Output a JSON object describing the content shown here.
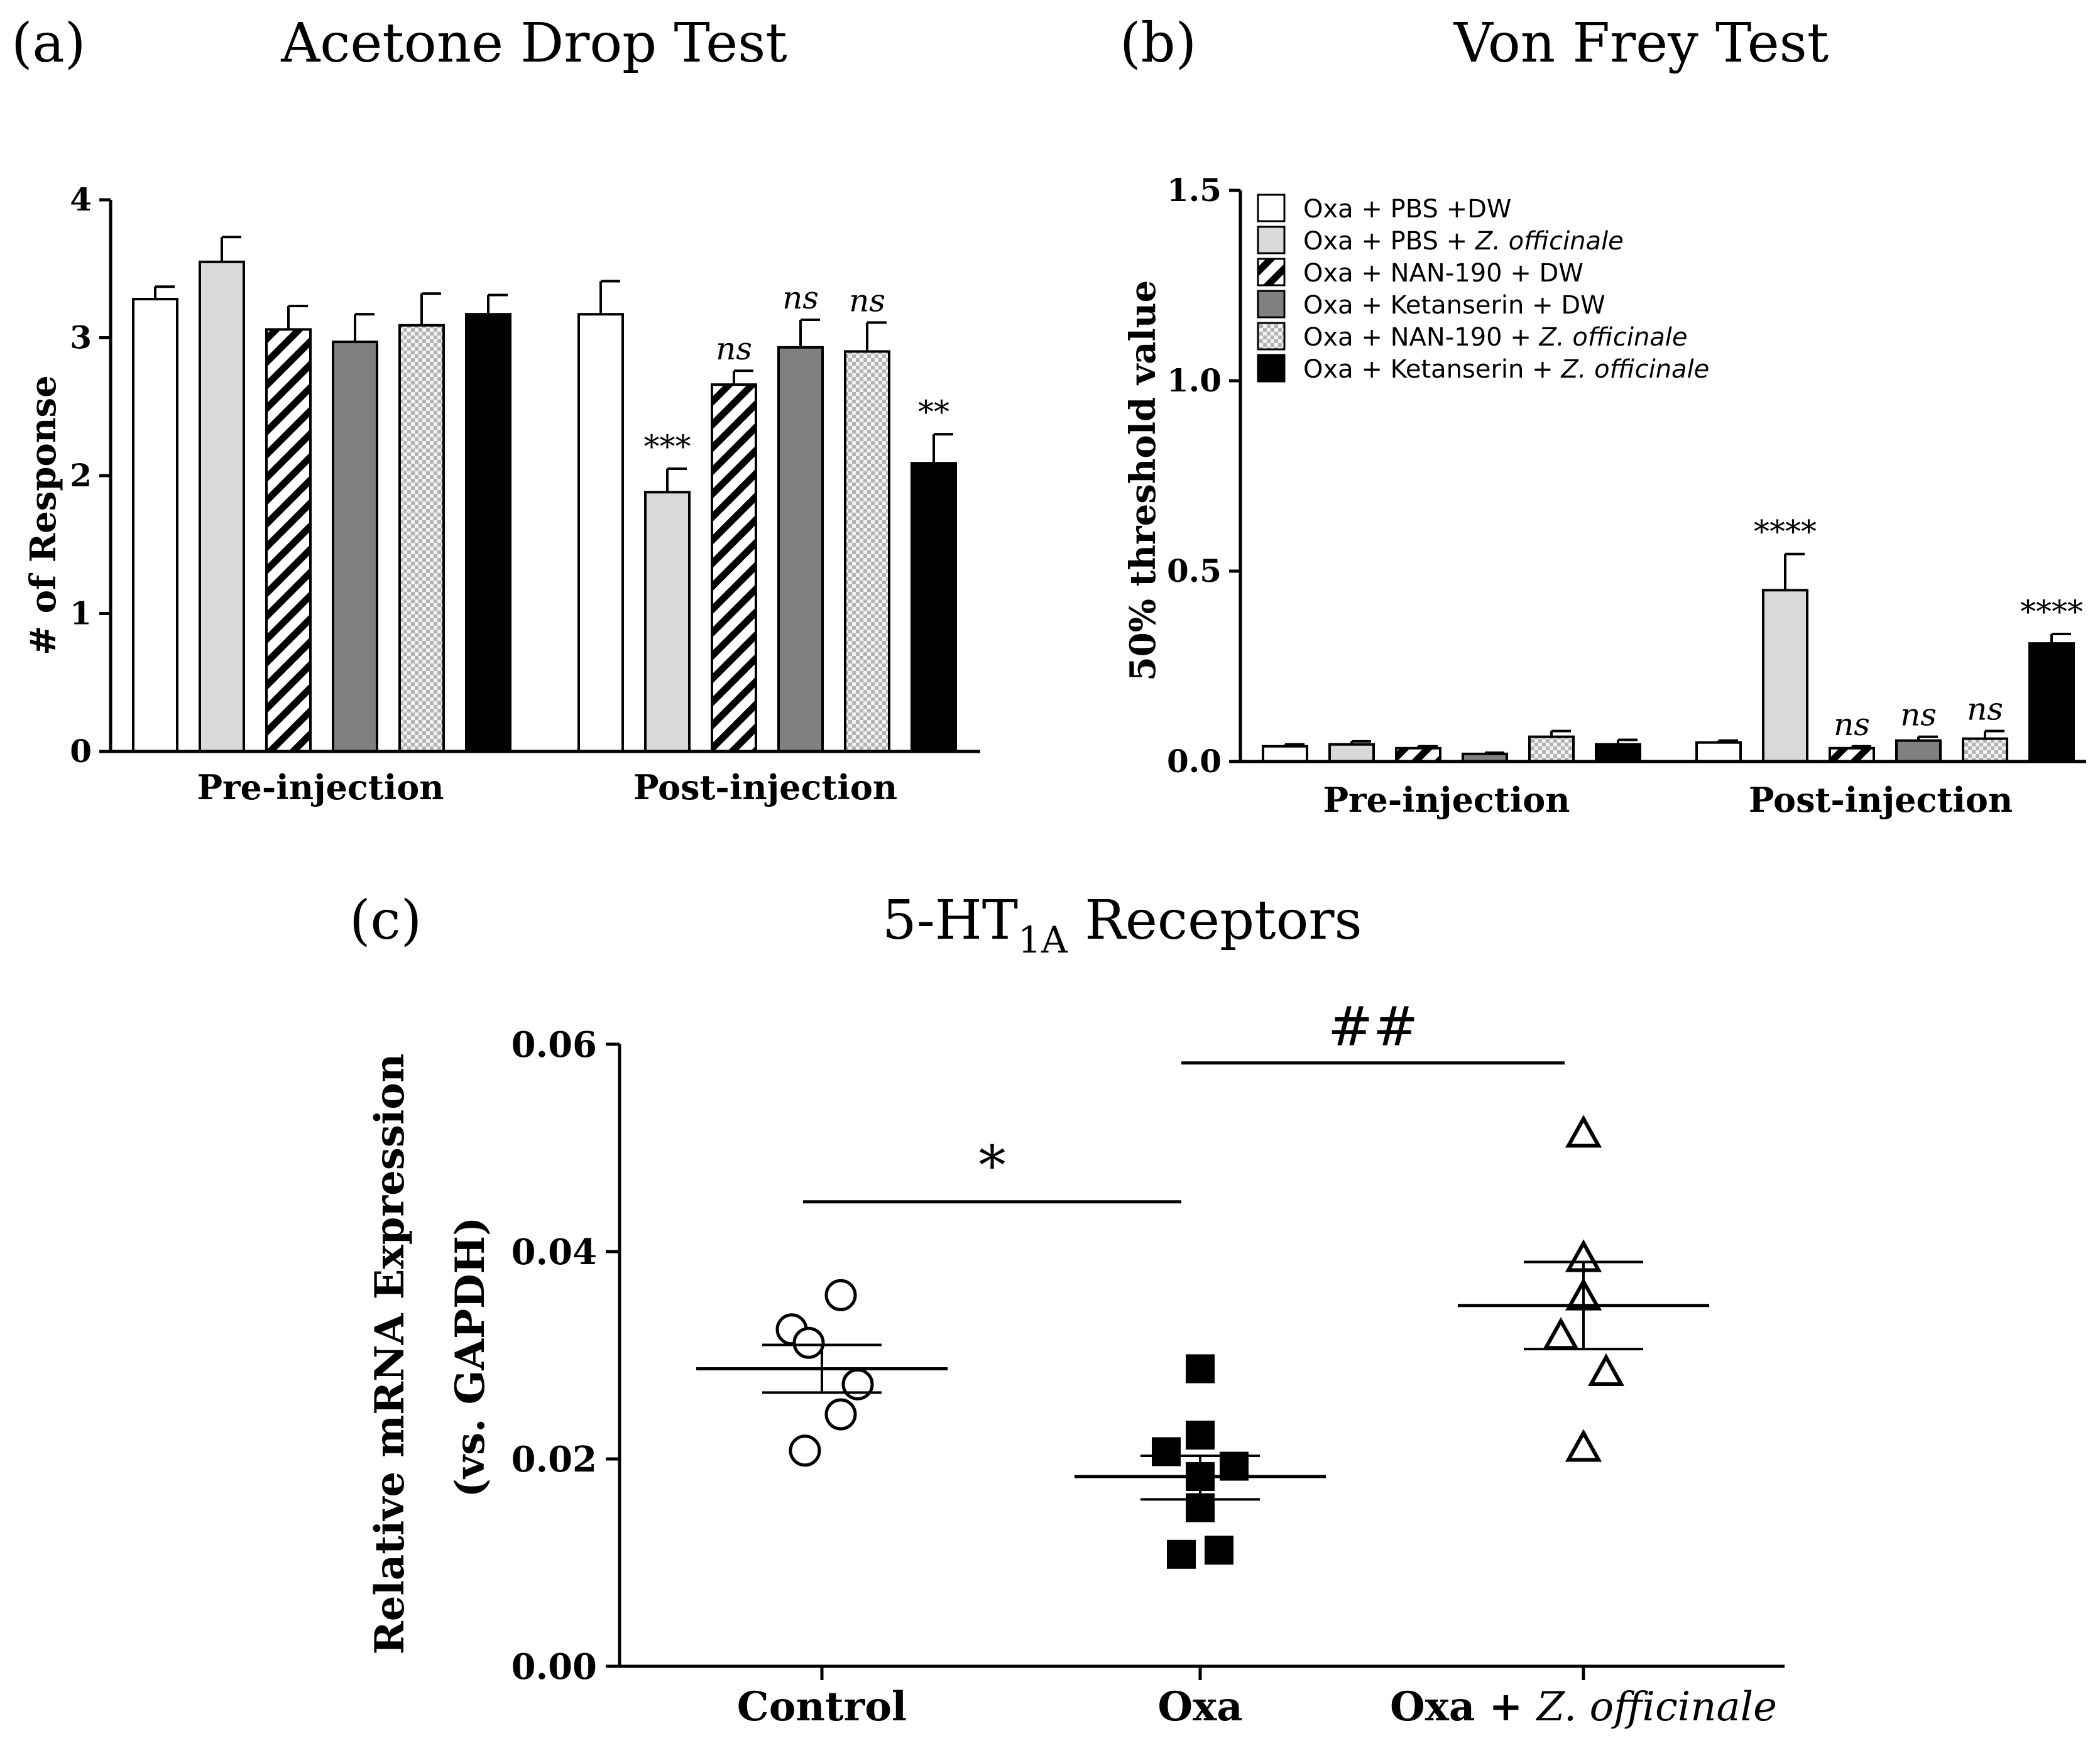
{
  "colors": {
    "white": "#ffffff",
    "light_gray": "#d9d9d9",
    "dark_gray": "#808080",
    "black": "#000000"
  },
  "chart_data": [
    {
      "panel": "(a)",
      "type": "bar",
      "title": "Acetone Drop Test",
      "xlabel": "",
      "ylabel": "# of Response",
      "ylim": [
        0,
        4
      ],
      "yticks": [
        "0",
        "1",
        "2",
        "3",
        "4"
      ],
      "categories": [
        "Pre-injection",
        "Post-injection"
      ],
      "series": [
        {
          "name": "Oxa + PBS +DW",
          "fill": "white",
          "values": [
            3.28,
            3.17
          ],
          "errors": [
            0.09,
            0.24
          ],
          "sig": [
            "",
            ""
          ]
        },
        {
          "name": "Oxa + PBS + Z. officinale",
          "fill": "light",
          "values": [
            3.55,
            1.88
          ],
          "errors": [
            0.18,
            0.17
          ],
          "sig": [
            "",
            "***"
          ]
        },
        {
          "name": "Oxa + NAN-190 + DW",
          "fill": "hatch",
          "values": [
            3.06,
            2.66
          ],
          "errors": [
            0.17,
            0.1
          ],
          "sig": [
            "",
            "ns"
          ]
        },
        {
          "name": "Oxa + Ketanserin + DW",
          "fill": "dark",
          "values": [
            2.97,
            2.93
          ],
          "errors": [
            0.2,
            0.2
          ],
          "sig": [
            "",
            "ns"
          ]
        },
        {
          "name": "Oxa + NAN-190 + Z. officinale",
          "fill": "check",
          "values": [
            3.09,
            2.9
          ],
          "errors": [
            0.23,
            0.21
          ],
          "sig": [
            "",
            "ns"
          ]
        },
        {
          "name": "Oxa + Ketanserin + Z. officinale",
          "fill": "black",
          "values": [
            3.17,
            2.09
          ],
          "errors": [
            0.14,
            0.21
          ],
          "sig": [
            "",
            "**"
          ]
        }
      ]
    },
    {
      "panel": "(b)",
      "type": "bar",
      "title": "Von Frey Test",
      "xlabel": "",
      "ylabel": "50% threshold value",
      "ylim": [
        0,
        1.5
      ],
      "yticks": [
        "0.0",
        "0.5",
        "1.0",
        "1.5"
      ],
      "categories": [
        "Pre-injection",
        "Post-injection"
      ],
      "legend_position": "top-left",
      "series": [
        {
          "name": "Oxa + PBS +DW",
          "legend_main": "Oxa + PBS +DW",
          "legend_it": "",
          "fill": "white",
          "values": [
            0.04,
            0.05
          ],
          "errors": [
            0.005,
            0.005
          ],
          "sig": [
            "",
            ""
          ]
        },
        {
          "name": "Oxa + PBS + Z. officinale",
          "legend_main": "Oxa + PBS + ",
          "legend_it": "Z. officinale",
          "fill": "light",
          "values": [
            0.045,
            0.45
          ],
          "errors": [
            0.008,
            0.095
          ],
          "sig": [
            "",
            "****"
          ]
        },
        {
          "name": "Oxa + NAN-190 + DW",
          "legend_main": "Oxa + NAN-190 + DW",
          "legend_it": "",
          "fill": "hatch",
          "values": [
            0.035,
            0.035
          ],
          "errors": [
            0.005,
            0.005
          ],
          "sig": [
            "",
            "ns"
          ]
        },
        {
          "name": "Oxa + Ketanserin + DW",
          "legend_main": "Oxa + Ketanserin + DW",
          "legend_it": "",
          "fill": "dark",
          "values": [
            0.02,
            0.055
          ],
          "errors": [
            0.003,
            0.01
          ],
          "sig": [
            "",
            "ns"
          ]
        },
        {
          "name": "Oxa + NAN-190 + Z. officinale",
          "legend_main": "Oxa + NAN-190 + ",
          "legend_it": "Z. officinale",
          "fill": "check",
          "values": [
            0.065,
            0.06
          ],
          "errors": [
            0.015,
            0.02
          ],
          "sig": [
            "",
            "ns"
          ]
        },
        {
          "name": "Oxa + Ketanserin + Z. officinale",
          "legend_main": "Oxa + Ketanserin + ",
          "legend_it": "Z. officinale",
          "fill": "black",
          "values": [
            0.045,
            0.31
          ],
          "errors": [
            0.012,
            0.025
          ],
          "sig": [
            "",
            "****"
          ]
        }
      ]
    },
    {
      "panel": "(c)",
      "type": "scatter",
      "title_main": "5-HT",
      "title_sub": "1A",
      "title_rest": " Receptors",
      "xlabel": "",
      "ylabel_line1": "Relative mRNA Expression",
      "ylabel_line2": "(vs. GAPDH)",
      "ylim": [
        0,
        0.06
      ],
      "yticks": [
        "0.00",
        "0.02",
        "0.04",
        "0.06"
      ],
      "groups": [
        {
          "label": "Control",
          "label_it": "",
          "marker": "circle",
          "mean": 0.0287,
          "sem_low": 0.0264,
          "sem_high": 0.031,
          "points": [
            [
              -0.16,
              0.0325
            ],
            [
              -0.07,
              0.0312
            ],
            [
              0.1,
              0.0358
            ],
            [
              0.19,
              0.0272
            ],
            [
              0.1,
              0.0243
            ],
            [
              -0.09,
              0.0208
            ]
          ]
        },
        {
          "label": "Oxa",
          "label_it": "",
          "marker": "square",
          "mean": 0.0183,
          "sem_low": 0.0161,
          "sem_high": 0.0203,
          "points": [
            [
              0.0,
              0.0287
            ],
            [
              -0.18,
              0.0207
            ],
            [
              0.0,
              0.0223
            ],
            [
              0.0,
              0.0183
            ],
            [
              0.18,
              0.0193
            ],
            [
              0.0,
              0.0153
            ],
            [
              -0.1,
              0.0108
            ],
            [
              0.1,
              0.0112
            ]
          ]
        },
        {
          "label": "Oxa + ",
          "label_it": "Z. officinale",
          "marker": "triangle",
          "mean": 0.0348,
          "sem_low": 0.0306,
          "sem_high": 0.039,
          "points": [
            [
              0.0,
              0.0513
            ],
            [
              0.0,
              0.0393
            ],
            [
              0.0,
              0.0356
            ],
            [
              -0.12,
              0.0318
            ],
            [
              0.12,
              0.0283
            ],
            [
              0.0,
              0.021
            ]
          ]
        }
      ],
      "significance": [
        {
          "label": "*",
          "from_group": 0,
          "to_group": 1,
          "y": 0.0448
        },
        {
          "label": "##",
          "from_group": 1,
          "to_group": 2,
          "y": 0.0582
        }
      ]
    }
  ]
}
